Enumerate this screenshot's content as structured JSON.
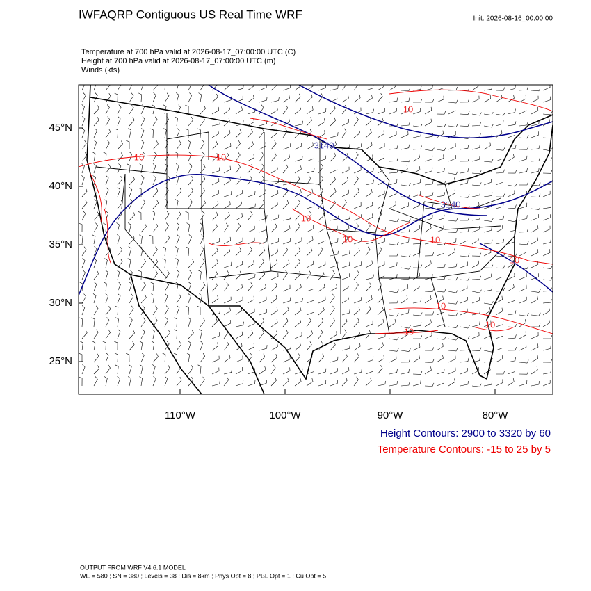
{
  "header": {
    "title": "IWFAQRP Contiguous US Real Time WRF",
    "init": "Init: 2026-08-16_00:00:00"
  },
  "fields": [
    "Temperature at 700 hPa valid at 2026-08-17_07:00:00 UTC   (C)",
    "Height at 700 hPa valid at 2026-08-17_07:00:00 UTC   (m)",
    "Winds   (kts)"
  ],
  "map": {
    "lat_labels": [
      "45°N",
      "40°N",
      "35°N",
      "30°N",
      "25°N"
    ],
    "lon_labels": [
      "110°W",
      "100°W",
      "90°W",
      "80°W"
    ],
    "contour_labels": [
      "10",
      "10",
      "3140",
      "10",
      "10",
      "3140",
      "10",
      "10",
      "10",
      "10",
      "10",
      "10"
    ]
  },
  "legend": {
    "height": "Height Contours: 2900 to 3320 by 60",
    "temperature": "Temperature Contours: -15 to 25 by 5"
  },
  "footer": [
    "OUTPUT FROM WRF V4.6.1 MODEL",
    "WE = 580 ; SN = 380 ; Levels = 38 ; Dis = 8km ; Phys Opt = 8 ; PBL Opt = 1 ; Cu Opt = 5"
  ]
}
